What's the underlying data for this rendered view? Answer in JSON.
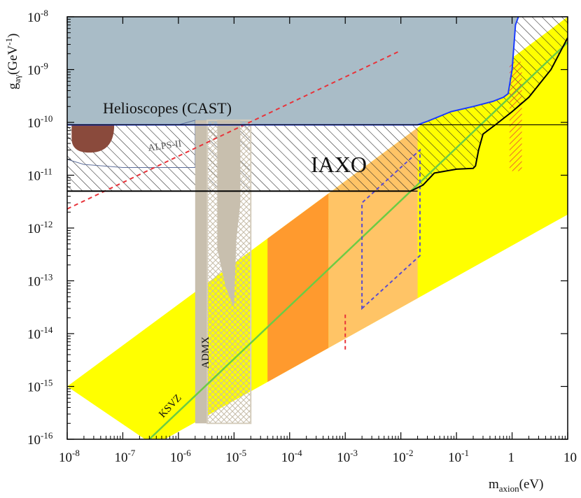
{
  "chart_data": {
    "type": "area",
    "x_scale": "log",
    "y_scale": "log",
    "xlim": [
      1e-08,
      10
    ],
    "ylim": [
      1e-16,
      1e-08
    ],
    "xlabel": {
      "main": "m",
      "sub": "axion",
      "unit": "(eV)"
    },
    "ylabel": {
      "main": "g",
      "sub": "aγ",
      "unit": "(GeV",
      "sup": "-1",
      "close": ")"
    },
    "x_ticks": [
      {
        "value": 1e-08,
        "base": "10",
        "exp": "-8"
      },
      {
        "value": 1e-07,
        "base": "10",
        "exp": "-7"
      },
      {
        "value": 1e-06,
        "base": "10",
        "exp": "-6"
      },
      {
        "value": 1e-05,
        "base": "10",
        "exp": "-5"
      },
      {
        "value": 0.0001,
        "base": "10",
        "exp": "-4"
      },
      {
        "value": 0.001,
        "base": "10",
        "exp": "-3"
      },
      {
        "value": 0.01,
        "base": "10",
        "exp": "-2"
      },
      {
        "value": 0.1,
        "base": "10",
        "exp": "-1"
      },
      {
        "value": 1,
        "base": "1",
        "exp": ""
      },
      {
        "value": 10,
        "base": "10",
        "exp": ""
      }
    ],
    "y_ticks": [
      {
        "value": 1e-08,
        "base": "10",
        "exp": "-8"
      },
      {
        "value": 1e-09,
        "base": "10",
        "exp": "-9"
      },
      {
        "value": 1e-10,
        "base": "10",
        "exp": "-10"
      },
      {
        "value": 1e-11,
        "base": "10",
        "exp": "-11"
      },
      {
        "value": 1e-12,
        "base": "10",
        "exp": "-12"
      },
      {
        "value": 1e-13,
        "base": "10",
        "exp": "-13"
      },
      {
        "value": 1e-14,
        "base": "10",
        "exp": "-14"
      },
      {
        "value": 1e-15,
        "base": "10",
        "exp": "-15"
      },
      {
        "value": 1e-16,
        "base": "10",
        "exp": "-16"
      }
    ],
    "labels": {
      "helioscopes": "Helioscopes (CAST)",
      "iaxo": "IAXO",
      "alps": "ALPS-II",
      "admx": "ADMX",
      "ksvz": "KSVZ"
    },
    "band": {
      "description_points": [
        [
          2.5e-07,
          1e-16
        ],
        [
          1e-08,
          1e-15
        ]
      ],
      "lower": [
        [
          5.7e-07,
          1e-16
        ],
        [
          10,
          1.8e-12
        ]
      ],
      "upper": [
        [
          1e-08,
          1e-15
        ],
        [
          10,
          1e-08
        ]
      ]
    },
    "ksvz_line": [
      [
        3e-07,
        1e-16
      ],
      [
        10,
        3.3e-09
      ]
    ],
    "cast_boundary": [
      [
        1e-08,
        9e-11
      ],
      [
        0.02,
        9e-11
      ],
      [
        0.03,
        1.05e-10
      ],
      [
        0.08,
        1.6e-10
      ],
      [
        0.2,
        2e-10
      ],
      [
        0.45,
        2.5e-10
      ],
      [
        0.7,
        3e-10
      ],
      [
        0.85,
        3.5e-10
      ],
      [
        1,
        1e-09
      ],
      [
        1.15,
        7e-09
      ],
      [
        1.3,
        1e-08
      ]
    ],
    "iaxo_boundary": [
      [
        1e-08,
        5e-12
      ],
      [
        0.015,
        5e-12
      ],
      [
        0.025,
        6.5e-12
      ],
      [
        0.04,
        1.1e-11
      ],
      [
        0.1,
        1.3e-11
      ],
      [
        0.2,
        1.35e-11
      ],
      [
        0.22,
        1.5e-11
      ],
      [
        0.25,
        3e-11
      ],
      [
        0.3,
        6e-11
      ],
      [
        0.5,
        9e-11
      ],
      [
        1,
        1.6e-10
      ],
      [
        2,
        3e-10
      ],
      [
        5,
        1e-09
      ],
      [
        10,
        4e-09
      ]
    ],
    "alps_region": [
      [
        1e-08,
        9e-11
      ],
      [
        1e-06,
        9e-11
      ],
      [
        2e-06,
        1.1e-10
      ],
      [
        2e-06,
        1.4e-11
      ],
      [
        1e-07,
        1.4e-11
      ],
      [
        2e-08,
        1.6e-11
      ],
      [
        1e-08,
        2e-11
      ]
    ],
    "red_dashed_line": [
      [
        1e-08,
        2.3e-12
      ],
      [
        0.01,
        2.3e-09
      ]
    ],
    "admx": {
      "x": [
        2e-06,
        3.3e-06
      ],
      "y_top": 1.1e-10,
      "y_bottom": 2e-16
    },
    "admx_future": {
      "x": [
        3.3e-06,
        2e-05
      ],
      "y_top": 1.1e-10,
      "y_bottom": 2e-16
    },
    "orange_region": {
      "x": [
        4e-05,
        0.0005
      ]
    },
    "light_orange_region": {
      "x": [
        0.0005,
        0.02
      ]
    },
    "blue_dashed_region": [
      [
        0.002,
        3e-14
      ],
      [
        0.022,
        3e-13
      ],
      [
        0.022,
        3e-11
      ],
      [
        0.002,
        3e-12
      ]
    ],
    "red_dashed_vertical": {
      "x": 0.001,
      "y": [
        5e-15,
        2.5e-14
      ]
    },
    "red_hatched_region": {
      "x": [
        0.9,
        1.5
      ],
      "y": [
        1.2e-11,
        1.4e-09
      ]
    },
    "colors": {
      "cast_fill": "#a9bcc7",
      "band_yellow": "#ffff00",
      "ksvz": "#6ccc44",
      "orange": "#ff9a2e",
      "light_orange": "#ffc466",
      "admx": "#c8bfae",
      "red_dashed": "#e8333a",
      "blue_line": "#1a3bff",
      "dark_brown": "#8a4a3c"
    }
  }
}
